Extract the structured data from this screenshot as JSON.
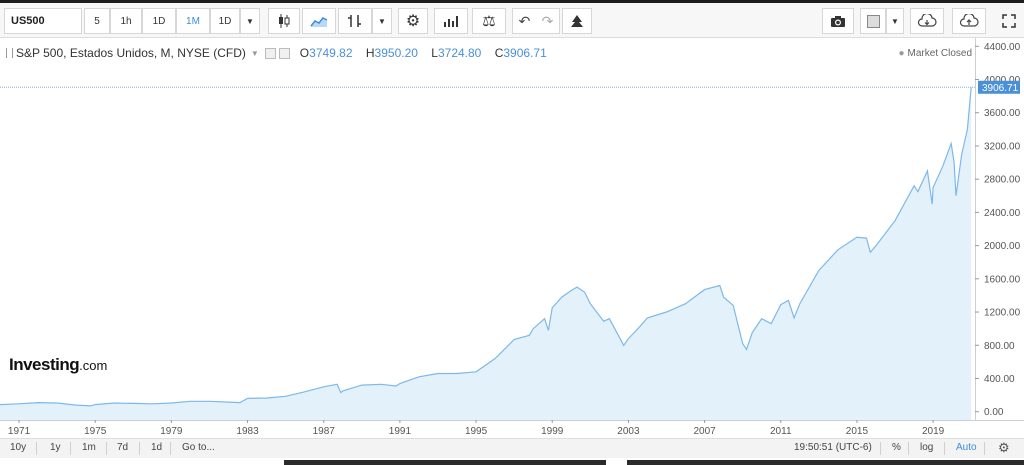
{
  "toolbar": {
    "symbol": "US500",
    "intervals": [
      "5",
      "1h",
      "1D",
      "1M"
    ],
    "active_interval": "1M",
    "range_select": "1D",
    "icons": [
      "candlestick-icon",
      "area-chart-icon",
      "indicators-icon",
      "settings-gear-icon",
      "bar-chart-icon",
      "balance-icon",
      "undo-icon",
      "redo-icon",
      "alert-tree-icon",
      "camera-icon",
      "color-square-icon",
      "cloud-download-icon",
      "cloud-upload-icon",
      "fullscreen-icon"
    ]
  },
  "legend": {
    "title": "S&P 500, Estados Unidos, M, NYSE (CFD)",
    "open_label": "O",
    "open": "3749.82",
    "high_label": "H",
    "high": "3950.20",
    "low_label": "L",
    "low": "3724.80",
    "close_label": "C",
    "close": "3906.71",
    "status": "Market Closed"
  },
  "logo": {
    "main": "Investing",
    "suffix": ".com"
  },
  "bottom": {
    "ranges": [
      "10y",
      "1y",
      "1m",
      "7d",
      "1d"
    ],
    "goto": "Go to...",
    "time": "19:50:51 (UTC-6)",
    "percent": "%",
    "log": "log",
    "auto": "Auto"
  },
  "colors": {
    "line": "#7fb8e8",
    "fill": "#e3f1fb",
    "accent": "#3d8de0",
    "price_tag": "#4a90d9"
  },
  "chart_data": {
    "type": "area",
    "title": "",
    "xlabel": "",
    "ylabel": "",
    "ylim": [
      -100,
      4500
    ],
    "xlim": [
      1970.0,
      2021.2
    ],
    "x_ticks": [
      "1971",
      "1975",
      "1979",
      "1983",
      "1987",
      "1991",
      "1995",
      "1999",
      "2003",
      "2007",
      "2011",
      "2015",
      "2019"
    ],
    "y_ticks": [
      "0.00",
      "400.00",
      "800.00",
      "1200.00",
      "1600.00",
      "2000.00",
      "2400.00",
      "2800.00",
      "3200.00",
      "3600.00",
      "4000.00",
      "4400.00"
    ],
    "last_price_label": "3906.71",
    "grid": false,
    "legend": "none",
    "series": [
      {
        "x": [
          1970.0,
          1971.0,
          1972.0,
          1973.0,
          1974.0,
          1974.75,
          1975.0,
          1976.0,
          1977.0,
          1978.0,
          1979.0,
          1980.0,
          1981.0,
          1982.0,
          1982.6,
          1983.0,
          1984.0,
          1985.0,
          1986.0,
          1987.0,
          1987.7,
          1987.9,
          1988.0,
          1989.0,
          1990.0,
          1990.8,
          1991.0,
          1992.0,
          1993.0,
          1994.0,
          1995.0,
          1996.0,
          1997.0,
          1997.8,
          1998.0,
          1998.6,
          1998.8,
          1999.0,
          1999.5,
          2000.0,
          2000.3,
          2000.7,
          2001.0,
          2001.7,
          2002.0,
          2002.75,
          2003.0,
          2003.5,
          2004.0,
          2005.0,
          2006.0,
          2007.0,
          2007.8,
          2008.0,
          2008.5,
          2009.0,
          2009.2,
          2009.5,
          2010.0,
          2010.5,
          2011.0,
          2011.4,
          2011.7,
          2012.0,
          2013.0,
          2014.0,
          2015.0,
          2015.5,
          2015.7,
          2016.0,
          2016.5,
          2017.0,
          2018.0,
          2018.2,
          2018.7,
          2018.95,
          2019.0,
          2019.5,
          2019.95,
          2020.1,
          2020.2,
          2020.5,
          2020.8,
          2021.0
        ],
        "y": [
          85,
          95,
          110,
          105,
          80,
          70,
          85,
          105,
          100,
          95,
          105,
          125,
          125,
          115,
          110,
          160,
          165,
          185,
          240,
          300,
          330,
          230,
          250,
          320,
          330,
          310,
          340,
          420,
          460,
          460,
          480,
          640,
          870,
          920,
          1000,
          1120,
          980,
          1250,
          1380,
          1460,
          1500,
          1440,
          1300,
          1090,
          1120,
          800,
          880,
          1000,
          1130,
          1200,
          1300,
          1470,
          1520,
          1380,
          1280,
          820,
          750,
          950,
          1120,
          1060,
          1290,
          1340,
          1130,
          1300,
          1700,
          1950,
          2100,
          2090,
          1920,
          2000,
          2150,
          2300,
          2720,
          2650,
          2900,
          2500,
          2700,
          2950,
          3230,
          3000,
          2600,
          3100,
          3400,
          3906.71
        ]
      }
    ]
  }
}
